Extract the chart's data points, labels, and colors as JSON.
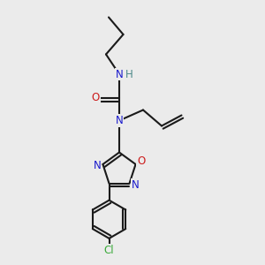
{
  "bg_color": "#ebebeb",
  "atom_colors": {
    "C": "#1a1a1a",
    "N": "#1a1acc",
    "O": "#cc1a1a",
    "H": "#4a8888",
    "Cl": "#3aaa3a"
  },
  "bond_color": "#1a1a1a",
  "bond_width": 1.5,
  "font_size": 8.5
}
